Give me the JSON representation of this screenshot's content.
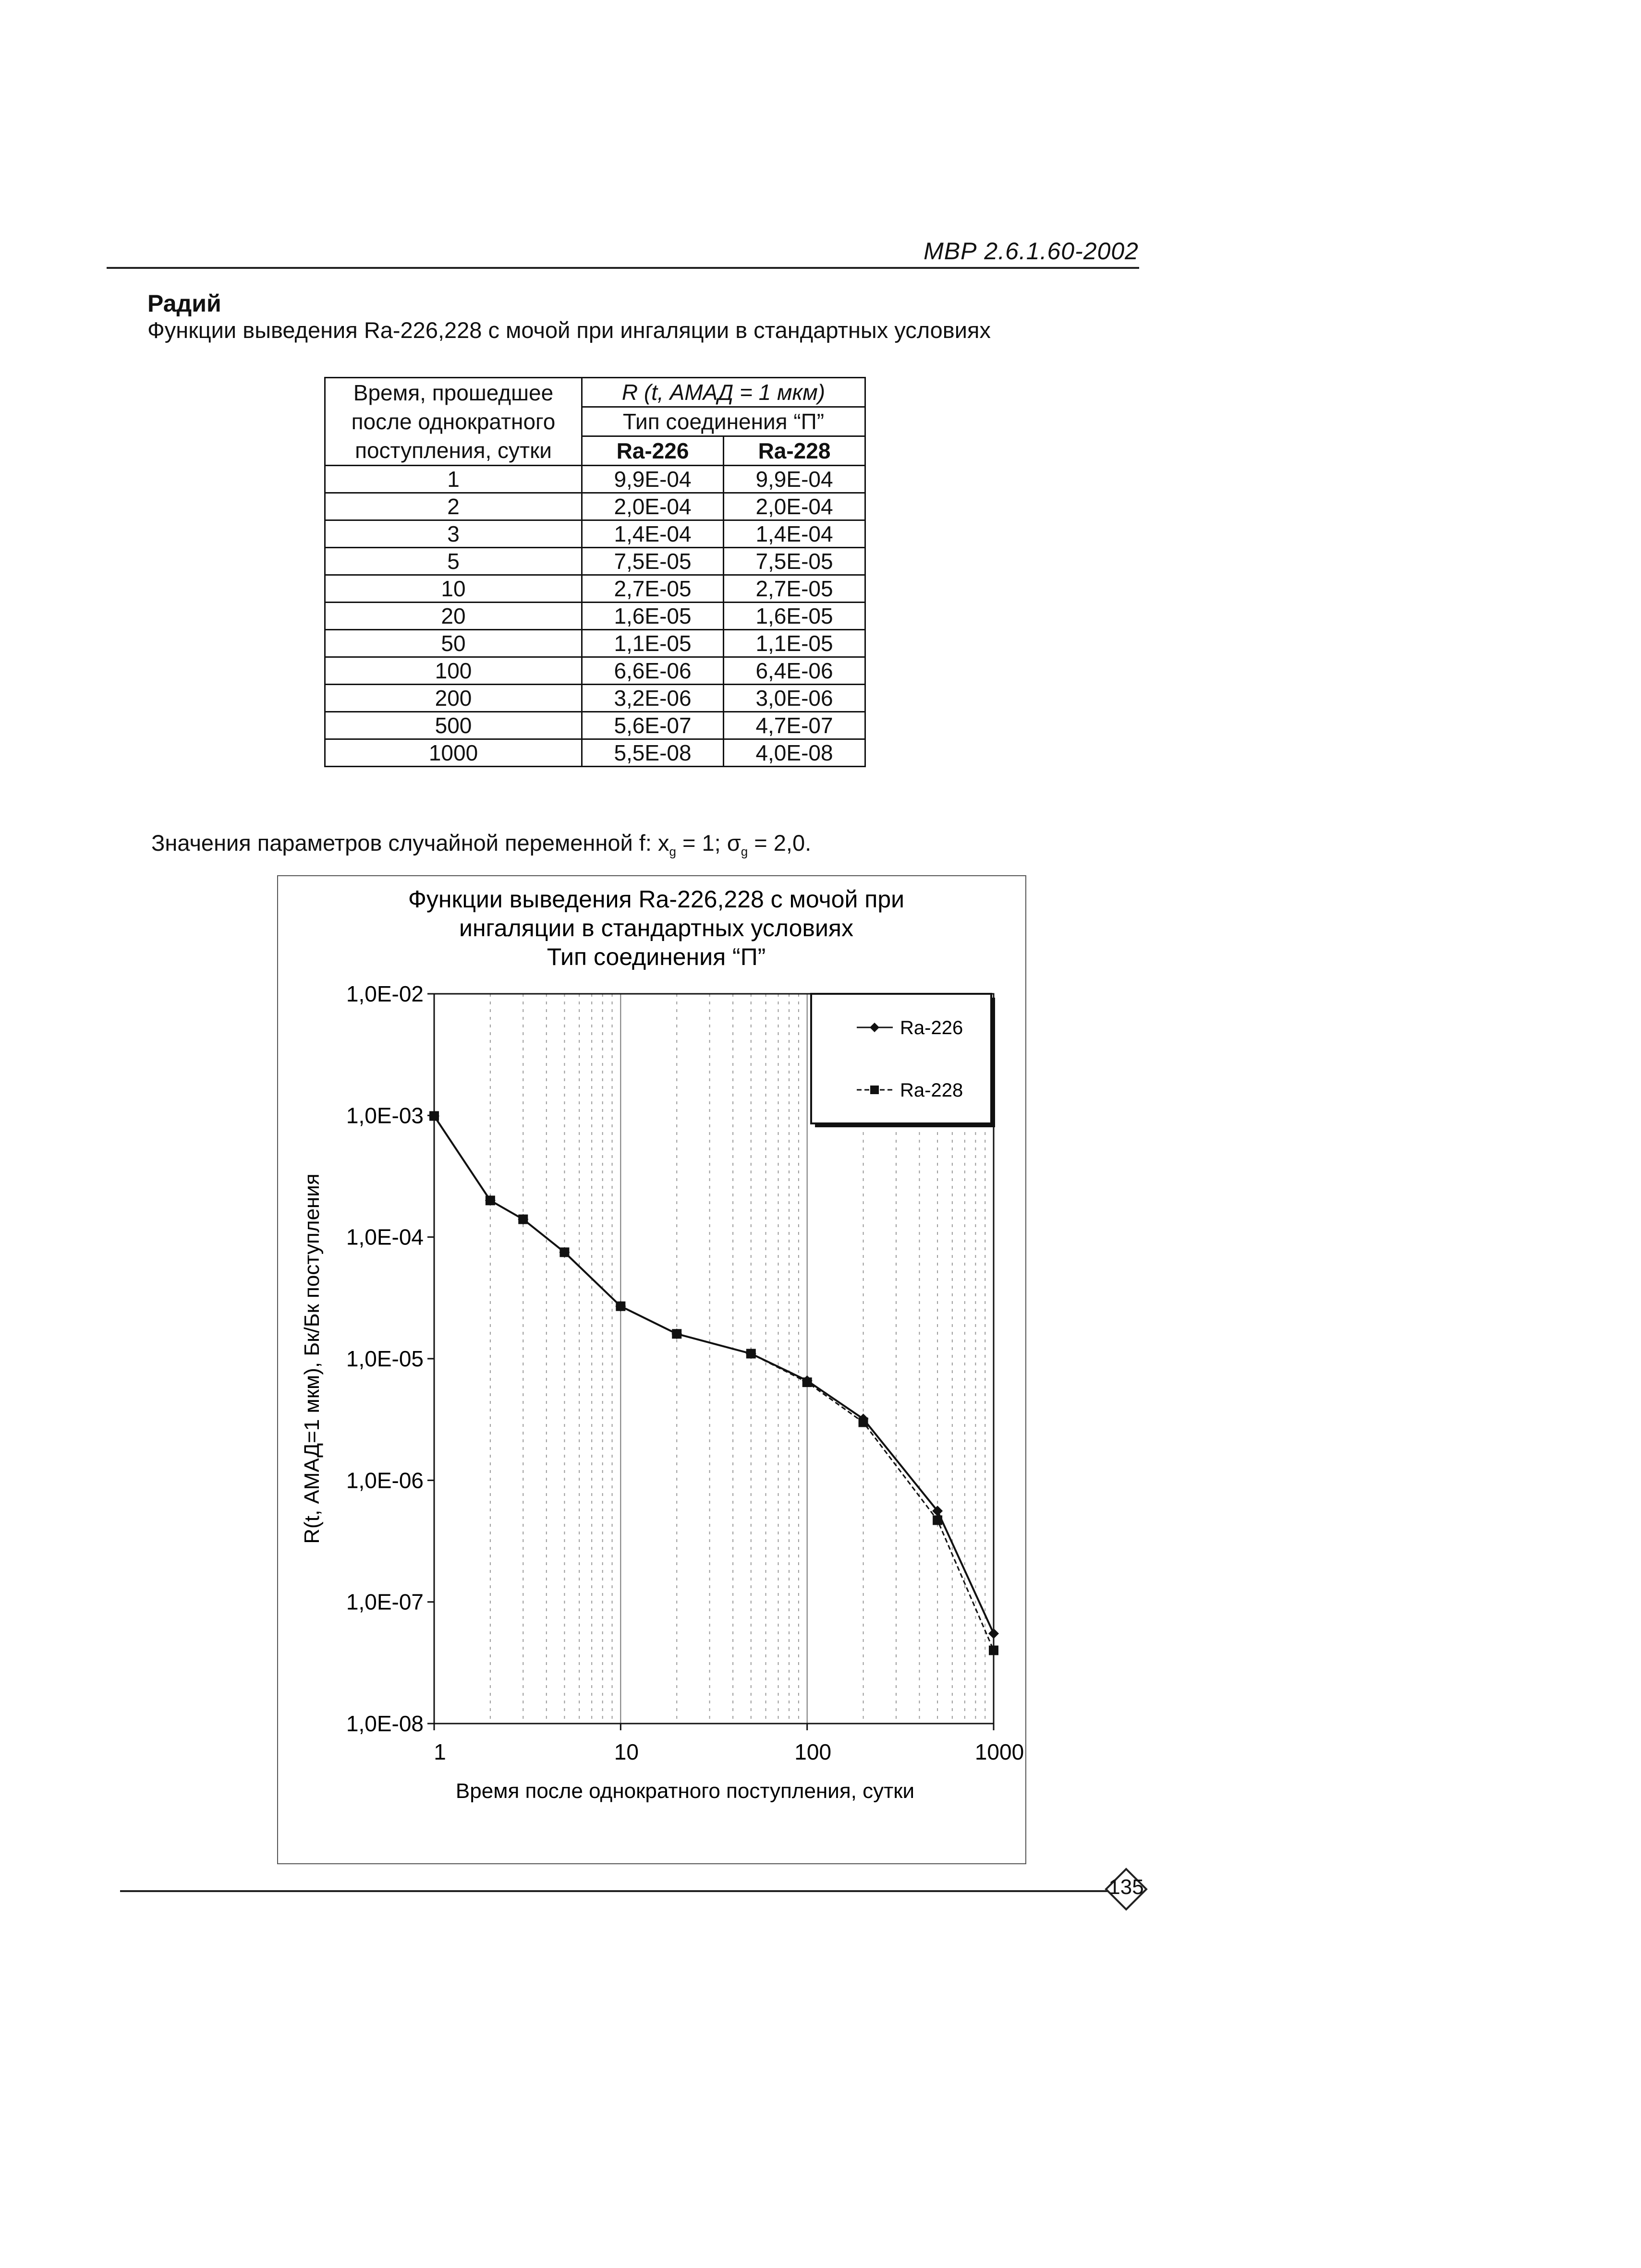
{
  "header": {
    "doc_code": "МВР 2.6.1.60-2002"
  },
  "section": {
    "title": "Радий",
    "subtitle": "Функции выведения Ra-226,228 с мочой при ингаляции в стандартных условиях"
  },
  "table": {
    "time_header": [
      "Время, прошедшее",
      "после однократного",
      "поступления, сутки"
    ],
    "r_header": "R (t, АМАД = 1 мкм)",
    "type_header": "Тип соединения “П”",
    "col_ra226": "Ra-226",
    "col_ra228": "Ra-228",
    "rows": [
      {
        "t": "1",
        "ra226": "9,9E-04",
        "ra228": "9,9E-04"
      },
      {
        "t": "2",
        "ra226": "2,0E-04",
        "ra228": "2,0E-04"
      },
      {
        "t": "3",
        "ra226": "1,4E-04",
        "ra228": "1,4E-04"
      },
      {
        "t": "5",
        "ra226": "7,5E-05",
        "ra228": "7,5E-05"
      },
      {
        "t": "10",
        "ra226": "2,7E-05",
        "ra228": "2,7E-05"
      },
      {
        "t": "20",
        "ra226": "1,6E-05",
        "ra228": "1,6E-05"
      },
      {
        "t": "50",
        "ra226": "1,1E-05",
        "ra228": "1,1E-05"
      },
      {
        "t": "100",
        "ra226": "6,6E-06",
        "ra228": "6,4E-06"
      },
      {
        "t": "200",
        "ra226": "3,2E-06",
        "ra228": "3,0E-06"
      },
      {
        "t": "500",
        "ra226": "5,6E-07",
        "ra228": "4,7E-07"
      },
      {
        "t": "1000",
        "ra226": "5,5E-08",
        "ra228": "4,0E-08"
      }
    ]
  },
  "params": {
    "prefix": "Значения параметров случайной переменной f: x",
    "sub_g1": "g",
    "mid": " = 1; σ",
    "sub_g2": "g",
    "suffix": " = 2,0."
  },
  "chart_data": {
    "type": "line",
    "title": [
      "Функции выведения Ra-226,228 с мочой при",
      "ингаляции в стандартных условиях",
      "Тип соединения “П”"
    ],
    "xlabel": "Время после однократного поступления, сутки",
    "ylabel": "R(t, АМАД=1 мкм), Бк/Бк поступления",
    "x_scale": "log",
    "y_scale": "log",
    "xlim": [
      1,
      1000
    ],
    "ylim": [
      1e-08,
      0.01
    ],
    "x_ticks": [
      1,
      10,
      100,
      1000
    ],
    "x_tick_labels": [
      "1",
      "10",
      "100",
      "1000"
    ],
    "y_ticks": [
      1e-08,
      1e-07,
      1e-06,
      1e-05,
      0.0001,
      0.001,
      0.01
    ],
    "y_tick_labels": [
      "1,0E-08",
      "1,0E-07",
      "1,0E-06",
      "1,0E-05",
      "1,0E-04",
      "1,0E-03",
      "1,0E-02"
    ],
    "grid": true,
    "legend_position": "top-right",
    "x": [
      1,
      2,
      3,
      5,
      10,
      20,
      50,
      100,
      200,
      500,
      1000
    ],
    "series": [
      {
        "name": "Ra-226",
        "marker": "diamond",
        "line": "solid",
        "color": "#111111",
        "values": [
          0.00099,
          0.0002,
          0.00014,
          7.5e-05,
          2.7e-05,
          1.6e-05,
          1.1e-05,
          6.6e-06,
          3.2e-06,
          5.6e-07,
          5.5e-08
        ]
      },
      {
        "name": "Ra-228",
        "marker": "square",
        "line": "dashed",
        "color": "#111111",
        "values": [
          0.00099,
          0.0002,
          0.00014,
          7.5e-05,
          2.7e-05,
          1.6e-05,
          1.1e-05,
          6.4e-06,
          3e-06,
          4.7e-07,
          4e-08
        ]
      }
    ]
  },
  "footer": {
    "page_number": "135"
  }
}
